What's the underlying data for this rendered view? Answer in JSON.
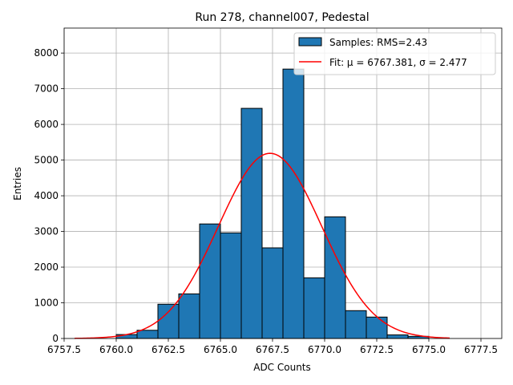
{
  "chart_data": {
    "type": "bar",
    "title": "Run 278, channel007, Pedestal",
    "xlabel": "ADC Counts",
    "ylabel": "Entries",
    "xlim": [
      6757.5,
      6778.5
    ],
    "ylim": [
      0,
      8700
    ],
    "xticks": [
      6757.5,
      6760.0,
      6762.5,
      6765.0,
      6767.5,
      6770.0,
      6772.5,
      6775.0,
      6777.5
    ],
    "xtick_labels": [
      "6757.5",
      "6760.0",
      "6762.5",
      "6765.0",
      "6767.5",
      "6770.0",
      "6772.5",
      "6775.0",
      "6777.5"
    ],
    "yticks": [
      0,
      1000,
      2000,
      3000,
      4000,
      5000,
      6000,
      7000,
      8000
    ],
    "ytick_labels": [
      "0",
      "1000",
      "2000",
      "3000",
      "4000",
      "5000",
      "6000",
      "7000",
      "8000"
    ],
    "grid": true,
    "legend_position": "top-right",
    "histogram": {
      "name": "Samples: RMS=2.43",
      "color": "#1f77b4",
      "edge_color": "#000000",
      "bins": [
        {
          "left": 6759.0,
          "right": 6760.0,
          "value": 0
        },
        {
          "left": 6760.0,
          "right": 6761.0,
          "value": 110
        },
        {
          "left": 6761.0,
          "right": 6762.0,
          "value": 230
        },
        {
          "left": 6762.0,
          "right": 6763.0,
          "value": 960
        },
        {
          "left": 6763.0,
          "right": 6764.0,
          "value": 1250
        },
        {
          "left": 6764.0,
          "right": 6765.0,
          "value": 3210
        },
        {
          "left": 6765.0,
          "right": 6766.0,
          "value": 2960
        },
        {
          "left": 6766.0,
          "right": 6767.0,
          "value": 6450
        },
        {
          "left": 6767.0,
          "right": 6768.0,
          "value": 2540
        },
        {
          "left": 6768.0,
          "right": 6769.0,
          "value": 7550
        },
        {
          "left": 6769.0,
          "right": 6770.0,
          "value": 1700
        },
        {
          "left": 6770.0,
          "right": 6771.0,
          "value": 3410
        },
        {
          "left": 6771.0,
          "right": 6772.0,
          "value": 780
        },
        {
          "left": 6772.0,
          "right": 6773.0,
          "value": 600
        },
        {
          "left": 6773.0,
          "right": 6774.0,
          "value": 100
        },
        {
          "left": 6774.0,
          "right": 6775.0,
          "value": 60
        }
      ]
    },
    "fit": {
      "name": "Fit: μ = 6767.381, σ = 2.477",
      "color": "#ff0000",
      "mu": 6767.381,
      "sigma": 2.477,
      "amplitude": 5190,
      "x_range": [
        6758.0,
        6776.0
      ]
    }
  }
}
